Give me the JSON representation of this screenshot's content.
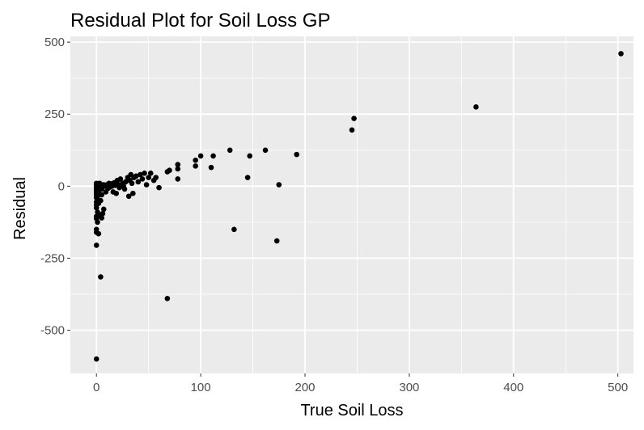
{
  "chart_data": {
    "type": "scatter",
    "title": "Residual Plot for Soil Loss GP",
    "xlabel": "True Soil Loss",
    "ylabel": "Residual",
    "xlim": [
      -25,
      515
    ],
    "ylim": [
      -650,
      520
    ],
    "x_ticks": [
      0,
      100,
      200,
      300,
      400,
      500
    ],
    "y_ticks": [
      -500,
      -250,
      0,
      250,
      500
    ],
    "x_tick_labels": [
      "0",
      "100",
      "200",
      "300",
      "400",
      "500"
    ],
    "y_tick_labels": [
      "-500",
      "-250",
      "0",
      "250",
      "500"
    ],
    "grid": true,
    "legend": "none",
    "colors": {
      "panel": "#ebebeb",
      "grid": "#ffffff",
      "point": "#000000",
      "tick": "#333333"
    },
    "points": [
      [
        0,
        10
      ],
      [
        0,
        5
      ],
      [
        0,
        0
      ],
      [
        0,
        -5
      ],
      [
        0,
        -10
      ],
      [
        0,
        -15
      ],
      [
        0,
        -20
      ],
      [
        0,
        -25
      ],
      [
        0,
        -30
      ],
      [
        0,
        -40
      ],
      [
        0,
        -55
      ],
      [
        0,
        -65
      ],
      [
        0,
        -75
      ],
      [
        0,
        -105
      ],
      [
        0,
        -112
      ],
      [
        0,
        -150
      ],
      [
        0,
        -160
      ],
      [
        0,
        -205
      ],
      [
        0,
        -600
      ],
      [
        1,
        8
      ],
      [
        1,
        2
      ],
      [
        1,
        -8
      ],
      [
        1,
        -18
      ],
      [
        1,
        -35
      ],
      [
        1,
        -48
      ],
      [
        1,
        -90
      ],
      [
        1,
        -125
      ],
      [
        2,
        5
      ],
      [
        2,
        -3
      ],
      [
        2,
        -25
      ],
      [
        2,
        -60
      ],
      [
        2,
        -165
      ],
      [
        3,
        10
      ],
      [
        3,
        0
      ],
      [
        3,
        -12
      ],
      [
        3,
        -100
      ],
      [
        4,
        6
      ],
      [
        4,
        -5
      ],
      [
        4,
        -50
      ],
      [
        4,
        -315
      ],
      [
        5,
        0
      ],
      [
        5,
        -10
      ],
      [
        5,
        -30
      ],
      [
        5,
        -110
      ],
      [
        6,
        -95
      ],
      [
        7,
        -80
      ],
      [
        7,
        5
      ],
      [
        8,
        0
      ],
      [
        9,
        -20
      ],
      [
        10,
        5
      ],
      [
        11,
        -8
      ],
      [
        12,
        10
      ],
      [
        13,
        -3
      ],
      [
        14,
        8
      ],
      [
        15,
        0
      ],
      [
        16,
        -20
      ],
      [
        17,
        12
      ],
      [
        18,
        3
      ],
      [
        19,
        -25
      ],
      [
        20,
        20
      ],
      [
        21,
        5
      ],
      [
        22,
        -5
      ],
      [
        23,
        25
      ],
      [
        25,
        10
      ],
      [
        26,
        0
      ],
      [
        27,
        -10
      ],
      [
        28,
        15
      ],
      [
        30,
        30
      ],
      [
        31,
        -35
      ],
      [
        32,
        20
      ],
      [
        33,
        40
      ],
      [
        34,
        10
      ],
      [
        35,
        -25
      ],
      [
        36,
        30
      ],
      [
        38,
        35
      ],
      [
        40,
        15
      ],
      [
        42,
        40
      ],
      [
        44,
        25
      ],
      [
        46,
        45
      ],
      [
        48,
        5
      ],
      [
        50,
        30
      ],
      [
        52,
        45
      ],
      [
        55,
        20
      ],
      [
        57,
        30
      ],
      [
        60,
        -5
      ],
      [
        68,
        -390
      ],
      [
        68,
        50
      ],
      [
        70,
        55
      ],
      [
        78,
        75
      ],
      [
        78,
        60
      ],
      [
        78,
        25
      ],
      [
        95,
        90
      ],
      [
        95,
        70
      ],
      [
        100,
        105
      ],
      [
        110,
        65
      ],
      [
        112,
        105
      ],
      [
        128,
        125
      ],
      [
        132,
        -150
      ],
      [
        145,
        30
      ],
      [
        147,
        105
      ],
      [
        162,
        125
      ],
      [
        173,
        -190
      ],
      [
        175,
        5
      ],
      [
        192,
        110
      ],
      [
        245,
        195
      ],
      [
        247,
        235
      ],
      [
        364,
        275
      ],
      [
        503,
        460
      ]
    ]
  }
}
